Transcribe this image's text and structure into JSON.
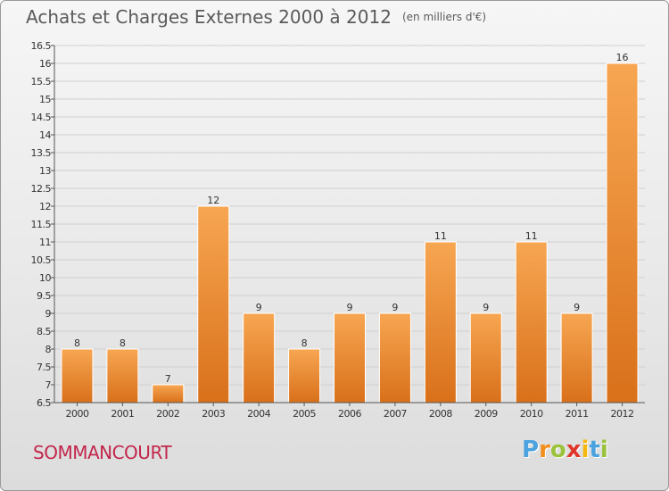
{
  "header": {
    "title": "Achats et Charges Externes 2000 à 2012",
    "unit": "(en milliers d'€)"
  },
  "footer": {
    "town": "SOMMANCOURT",
    "logo_letters": [
      "P",
      "r",
      "o",
      "x",
      "i",
      "t",
      "i"
    ],
    "logo_colors": [
      "#4aa3df",
      "#f28e1c",
      "#9bc23c",
      "#e0372b",
      "#f6b70e",
      "#4aa3df",
      "#9bc23c"
    ]
  },
  "colors": {
    "bar_top": "#f7a652",
    "bar_bottom": "#d9701a",
    "grid": "#cfcfcf",
    "axis_text": "#333333",
    "title": "#5a5a5a",
    "town": "#c2264b"
  },
  "chart_data": {
    "type": "bar",
    "title": "Achats et Charges Externes 2000 à 2012",
    "subtitle": "(en milliers d'€)",
    "xlabel": "",
    "ylabel": "",
    "categories": [
      "2000",
      "2001",
      "2002",
      "2003",
      "2004",
      "2005",
      "2006",
      "2007",
      "2008",
      "2009",
      "2010",
      "2011",
      "2012"
    ],
    "values": [
      8,
      8,
      7,
      12,
      9,
      8,
      9,
      9,
      11,
      9,
      11,
      9,
      16
    ],
    "ylim": [
      6.5,
      16.5
    ],
    "yticks": [
      "6.5",
      "7",
      "7.5",
      "8",
      "8.5",
      "9",
      "9.5",
      "10",
      "10.5",
      "11",
      "11.5",
      "12",
      "12.5",
      "13",
      "13.5",
      "14",
      "14.5",
      "15",
      "15.5",
      "16",
      "16.5"
    ],
    "grid": true,
    "legend": "none"
  }
}
